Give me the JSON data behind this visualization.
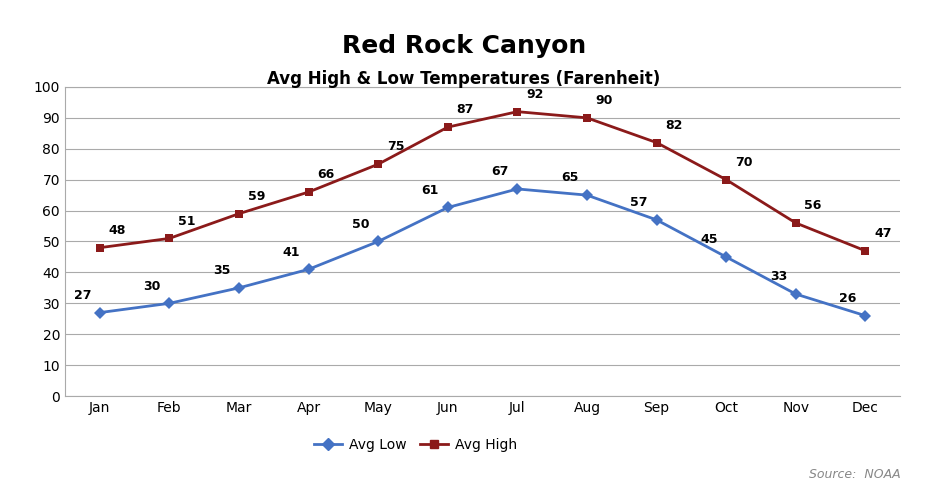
{
  "title": "Red Rock Canyon",
  "subtitle": "Avg High & Low Temperatures (Farenheit)",
  "source_text": "Source:  NOAA",
  "months": [
    "Jan",
    "Feb",
    "Mar",
    "Apr",
    "May",
    "Jun",
    "Jul",
    "Aug",
    "Sep",
    "Oct",
    "Nov",
    "Dec"
  ],
  "avg_low": [
    27,
    30,
    35,
    41,
    50,
    61,
    67,
    65,
    57,
    45,
    33,
    26
  ],
  "avg_high": [
    48,
    51,
    59,
    66,
    75,
    87,
    92,
    90,
    82,
    70,
    56,
    47
  ],
  "low_color": "#4472C4",
  "high_color": "#8B1A1A",
  "low_label": "Avg Low",
  "high_label": "Avg High",
  "ylim": [
    0,
    100
  ],
  "yticks": [
    0,
    10,
    20,
    30,
    40,
    50,
    60,
    70,
    80,
    90,
    100
  ],
  "bg_color": "#FFFFFF",
  "grid_color": "#AAAAAA",
  "title_fontsize": 18,
  "subtitle_fontsize": 12,
  "tick_fontsize": 10,
  "annotation_fontsize": 9,
  "legend_fontsize": 10,
  "source_fontsize": 9
}
